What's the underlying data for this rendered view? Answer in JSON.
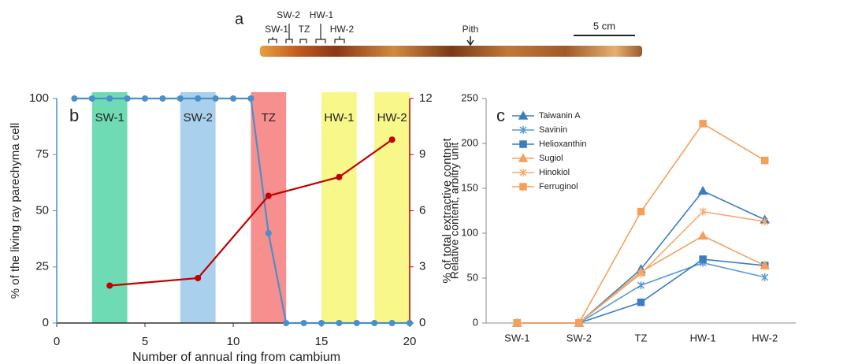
{
  "panel_a": {
    "label": "a",
    "zones": [
      "SW-1",
      "SW-2",
      "TZ",
      "HW-1",
      "HW-2"
    ],
    "pith": "Pith",
    "scale": "5 cm"
  },
  "chart_data": [
    {
      "type": "dual_line",
      "label": "b",
      "x_label": "Number of annual ring from cambium",
      "y_label": "% of the living ray parechyma cell",
      "y2_label": "% of total extractive contnet",
      "xlim": [
        0,
        20
      ],
      "xticks": [
        0,
        5,
        10,
        15,
        20
      ],
      "ylim": [
        0,
        100
      ],
      "yticks": [
        0,
        25,
        50,
        75,
        100
      ],
      "y2lim": [
        0,
        12
      ],
      "y2ticks": [
        0,
        3,
        6,
        9,
        12
      ],
      "bands": [
        {
          "label": "SW-1",
          "start": 2,
          "end": 4,
          "color": "#6edbb4"
        },
        {
          "label": "SW-2",
          "start": 7,
          "end": 9,
          "color": "#a9d0ec"
        },
        {
          "label": "TZ",
          "start": 11,
          "end": 13,
          "color": "#f78f8f"
        },
        {
          "label": "HW-1",
          "start": 15,
          "end": 17,
          "color": "#f8f78a"
        },
        {
          "label": "HW-2",
          "start": 18,
          "end": 20,
          "color": "#f8f78a"
        }
      ],
      "series": [
        {
          "color": "#4a8fc9",
          "axis": "y",
          "x": [
            1,
            2,
            3,
            4,
            5,
            6,
            7,
            8,
            9,
            10,
            11,
            12,
            13,
            14,
            15,
            16,
            17,
            18,
            19,
            20
          ],
          "values": [
            100,
            100,
            100,
            100,
            100,
            100,
            100,
            100,
            100,
            100,
            100,
            40,
            0,
            0,
            0,
            0,
            0,
            0,
            0,
            0
          ]
        },
        {
          "color": "#c00000",
          "axis": "y2",
          "x": [
            3,
            8,
            12,
            16,
            19
          ],
          "values": [
            2,
            2.4,
            6.8,
            7.8,
            9.8
          ]
        }
      ]
    },
    {
      "type": "line",
      "label": "c",
      "y_label": "Relative content, arbitry unit",
      "categories": [
        "SW-1",
        "SW-2",
        "TZ",
        "HW-1",
        "HW-2"
      ],
      "ylim": [
        0,
        250
      ],
      "yticks": [
        0,
        50,
        100,
        150,
        200,
        250
      ],
      "series": [
        {
          "name": "Taiwanin A",
          "color": "#3a7dc0",
          "marker": "triangle",
          "values": [
            0,
            0,
            60,
            147,
            115
          ]
        },
        {
          "name": "Savinin",
          "color": "#5a9ad0",
          "marker": "star",
          "values": [
            0,
            0,
            42,
            67,
            51
          ]
        },
        {
          "name": "Helioxanthin",
          "color": "#3a7dc0",
          "marker": "square",
          "values": [
            0,
            0,
            23,
            71,
            64
          ]
        },
        {
          "name": "Sugiol",
          "color": "#f5a05a",
          "marker": "triangle",
          "values": [
            0,
            0,
            57,
            97,
            64
          ]
        },
        {
          "name": "Hinokiol",
          "color": "#f5aa70",
          "marker": "star",
          "values": [
            0,
            0,
            55,
            124,
            113
          ]
        },
        {
          "name": "Ferruginol",
          "color": "#f5a05a",
          "marker": "square",
          "values": [
            0,
            0,
            124,
            222,
            181
          ]
        }
      ]
    }
  ]
}
